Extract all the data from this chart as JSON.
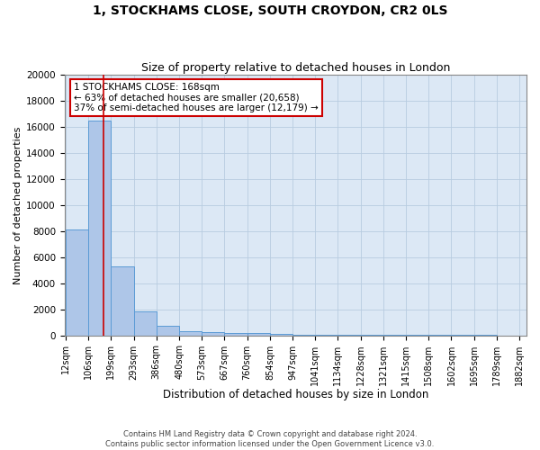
{
  "title": "1, STOCKHAMS CLOSE, SOUTH CROYDON, CR2 0LS",
  "subtitle": "Size of property relative to detached houses in London",
  "xlabel": "Distribution of detached houses by size in London",
  "ylabel": "Number of detached properties",
  "bin_edges": [
    12,
    106,
    199,
    293,
    386,
    480,
    573,
    667,
    760,
    854,
    947,
    1041,
    1134,
    1228,
    1321,
    1415,
    1508,
    1602,
    1695,
    1789,
    1882
  ],
  "bar_heights": [
    8100,
    16500,
    5300,
    1850,
    700,
    300,
    220,
    200,
    150,
    80,
    60,
    50,
    40,
    30,
    20,
    15,
    12,
    10,
    8,
    5
  ],
  "bar_color": "#aec6e8",
  "bar_edge_color": "#5b9bd5",
  "background_color": "#dce8f5",
  "property_size": 168,
  "pct_smaller": 63,
  "num_smaller": "20,658",
  "pct_larger": 37,
  "num_larger": "12,179",
  "vline_color": "#cc0000",
  "annotation_box_color": "#cc0000",
  "ylim": [
    0,
    20000
  ],
  "yticks": [
    0,
    2000,
    4000,
    6000,
    8000,
    10000,
    12000,
    14000,
    16000,
    18000,
    20000
  ],
  "footer_line1": "Contains HM Land Registry data © Crown copyright and database right 2024.",
  "footer_line2": "Contains public sector information licensed under the Open Government Licence v3.0.",
  "grid_color": "#b8cce0",
  "title_fontsize": 10,
  "subtitle_fontsize": 9,
  "tick_label_fontsize": 7,
  "ylabel_fontsize": 8,
  "xlabel_fontsize": 8.5
}
